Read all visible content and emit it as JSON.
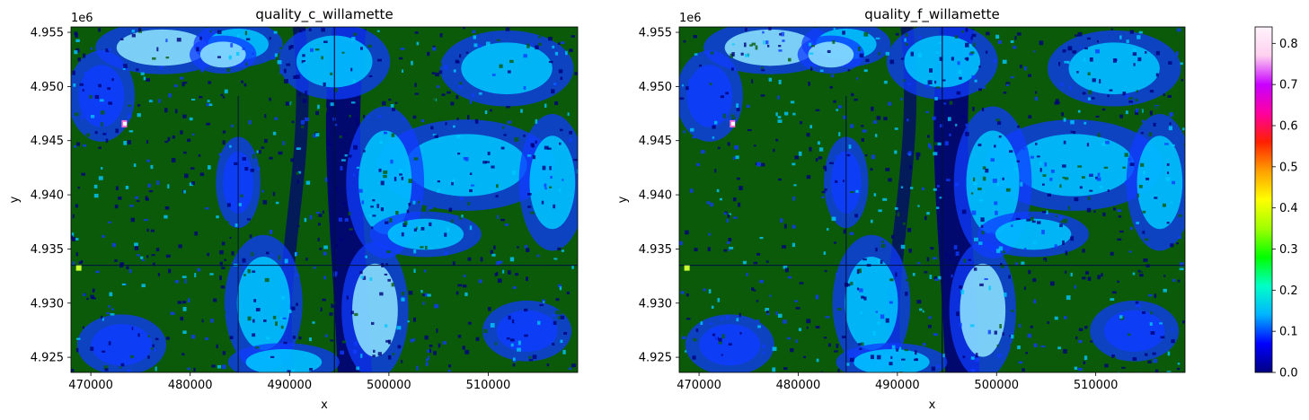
{
  "chart_data": [
    {
      "type": "heatmap",
      "title": "quality_c_willamette",
      "xlabel": "x",
      "ylabel": "y",
      "y_offset_label": "1e6",
      "xlim": [
        468000,
        519000
      ],
      "ylim": [
        4.9236,
        4.9555
      ],
      "xticks": [
        470000,
        480000,
        490000,
        500000,
        510000
      ],
      "xtick_labels": [
        "470000",
        "480000",
        "490000",
        "500000",
        "510000"
      ],
      "yticks": [
        4.925,
        4.93,
        4.935,
        4.94,
        4.945,
        4.95,
        4.955
      ],
      "ytick_labels": [
        "4.925",
        "4.930",
        "4.935",
        "4.940",
        "4.945",
        "4.950",
        "4.955"
      ]
    },
    {
      "type": "heatmap",
      "title": "quality_f_willamette",
      "xlabel": "x",
      "ylabel": "y",
      "y_offset_label": "1e6",
      "xlim": [
        468000,
        519000
      ],
      "ylim": [
        4.9236,
        4.9555
      ],
      "xticks": [
        470000,
        480000,
        490000,
        500000,
        510000
      ],
      "xtick_labels": [
        "470000",
        "480000",
        "490000",
        "500000",
        "510000"
      ],
      "yticks": [
        4.925,
        4.93,
        4.935,
        4.94,
        4.945,
        4.95,
        4.955
      ],
      "ytick_labels": [
        "4.925",
        "4.930",
        "4.935",
        "4.940",
        "4.945",
        "4.950",
        "4.955"
      ]
    }
  ],
  "colorbar": {
    "range": [
      0.0,
      0.84
    ],
    "ticks": [
      0.0,
      0.1,
      0.2,
      0.3,
      0.4,
      0.5,
      0.6,
      0.7,
      0.8
    ],
    "tick_labels": [
      "0.0",
      "0.1",
      "0.2",
      "0.3",
      "0.4",
      "0.5",
      "0.6",
      "0.7",
      "0.8"
    ],
    "colormap": [
      "#000080",
      "#0000ff",
      "#00b4ff",
      "#00ffc8",
      "#00ff00",
      "#a0ff00",
      "#ffff00",
      "#ffa000",
      "#ff2000",
      "#ff00a0",
      "#c800ff",
      "#ffd0f0",
      "#fff4fc"
    ]
  },
  "colors": {
    "dark_green": "#0a5a0a",
    "navy": "#00007a",
    "blue": "#0f3cff",
    "cyan": "#00c8ff",
    "light_cyan": "#8fe8ff"
  }
}
